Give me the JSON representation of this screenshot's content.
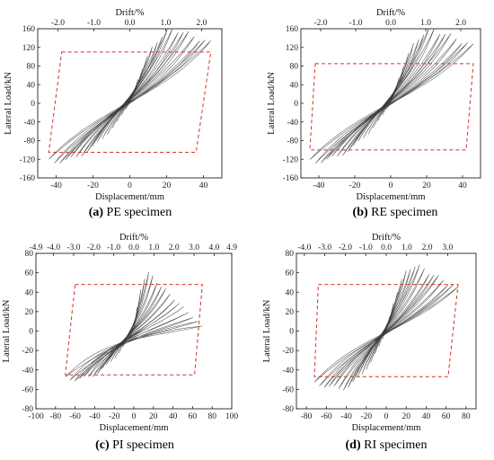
{
  "chart_data": [
    {
      "type": "line",
      "panel": "a",
      "caption_letter": "(a)",
      "caption_text": " PE specimen",
      "xlabel": "Displacement/mm",
      "ylabel": "Lateral Load/kN",
      "top_label": "Drift/%",
      "xlim": [
        -50,
        50
      ],
      "ylim": [
        -160,
        160
      ],
      "xticks": [
        -40,
        -20,
        0,
        20,
        40
      ],
      "yticks": [
        -160,
        -120,
        -80,
        -40,
        0,
        40,
        80,
        120,
        160
      ],
      "top_ticks": [
        "-2.0",
        "-1.0",
        "0.0",
        "1.0",
        "2.0"
      ],
      "top_tick_pos": [
        -39,
        -19.5,
        0,
        19.5,
        39
      ],
      "peak_pos": [
        25,
        160
      ],
      "peak_neg": [
        -40,
        -125
      ],
      "envelope_box": [
        [
          -37,
          110
        ],
        [
          44,
          110
        ],
        [
          36,
          -105
        ],
        [
          -44,
          -105
        ]
      ]
    },
    {
      "type": "line",
      "panel": "b",
      "caption_letter": "(b)",
      "caption_text": " RE specimen",
      "xlabel": "Displacement/mm",
      "ylabel": "Lateral Load/kN",
      "top_label": "Drift/%",
      "xlim": [
        -50,
        50
      ],
      "ylim": [
        -160,
        160
      ],
      "xticks": [
        -40,
        -20,
        0,
        20,
        40
      ],
      "yticks": [
        -160,
        -120,
        -80,
        -40,
        0,
        40,
        80,
        120,
        160
      ],
      "top_ticks": [
        "-2.0",
        "-1.0",
        "0.0",
        "1.0",
        "2.0"
      ],
      "top_tick_pos": [
        -39,
        -19.5,
        0,
        19.5,
        39
      ],
      "peak_pos": [
        24,
        160
      ],
      "peak_neg": [
        -42,
        -125
      ],
      "envelope_box": [
        [
          -42,
          85
        ],
        [
          46,
          85
        ],
        [
          42,
          -100
        ],
        [
          -45,
          -100
        ]
      ]
    },
    {
      "type": "line",
      "panel": "c",
      "caption_letter": "(c)",
      "caption_text": " PI specimen",
      "xlabel": "Displacement/mm",
      "ylabel": "Lateral Load/kN",
      "top_label": "Drift/%",
      "xlim": [
        -100,
        100
      ],
      "ylim": [
        -80,
        80
      ],
      "xticks": [
        -100,
        -80,
        -60,
        -40,
        -20,
        0,
        20,
        40,
        60,
        80,
        100
      ],
      "yticks": [
        -80,
        -60,
        -40,
        -20,
        0,
        20,
        40,
        60,
        80
      ],
      "top_ticks": [
        "-4.9",
        "-4.0",
        "-3.0",
        "-2.0",
        "-1.0",
        "0.0",
        "1.0",
        "2.0",
        "3.0",
        "4.0",
        "4.9"
      ],
      "top_tick_pos": [
        -100,
        -82,
        -61.5,
        -41,
        -20.5,
        0,
        20.5,
        41,
        61.5,
        82,
        100
      ],
      "peak_pos": [
        15,
        60
      ],
      "peak_neg": [
        -60,
        -50
      ],
      "envelope_box": [
        [
          -60,
          48
        ],
        [
          70,
          48
        ],
        [
          62,
          -45
        ],
        [
          -70,
          -45
        ]
      ]
    },
    {
      "type": "line",
      "panel": "d",
      "caption_letter": "(d)",
      "caption_text": " RI specimen",
      "xlabel": "Displacement/mm",
      "ylabel": "Lateral Load/kN",
      "top_label": "Drift/%",
      "xlim": [
        -90,
        90
      ],
      "ylim": [
        -80,
        80
      ],
      "xticks": [
        -80,
        -60,
        -40,
        -20,
        0,
        20,
        40,
        60,
        80
      ],
      "yticks": [
        -80,
        -60,
        -40,
        -20,
        0,
        20,
        40,
        60,
        80
      ],
      "top_ticks": [
        "-4.0",
        "-3.0",
        "-2.0",
        "-1.0",
        "0.0",
        "1.0",
        "2.0",
        "3.0"
      ],
      "top_tick_pos": [
        -82,
        -61.5,
        -41,
        -20.5,
        0,
        20.5,
        41,
        61.5
      ],
      "peak_pos": [
        30,
        68
      ],
      "peak_neg": [
        -50,
        -60
      ],
      "envelope_box": [
        [
          -68,
          48
        ],
        [
          72,
          48
        ],
        [
          62,
          -47
        ],
        [
          -72,
          -47
        ]
      ]
    }
  ]
}
